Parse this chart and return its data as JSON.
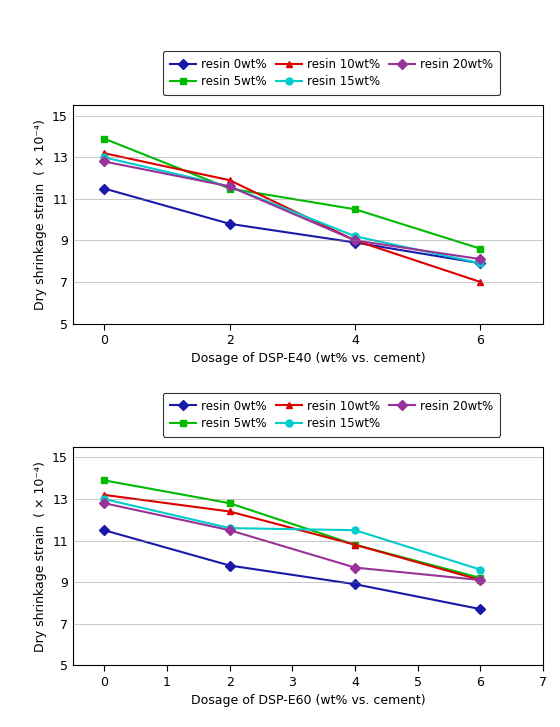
{
  "chart1": {
    "xlabel": "Dosage of DSP-E40 (wt% vs. cement)",
    "ylabel": "Dry shrinkage strain  ( × 10⁻⁴)",
    "xlim": [
      -0.5,
      7
    ],
    "ylim": [
      5,
      15.5
    ],
    "yticks": [
      5,
      7,
      9,
      11,
      13,
      15
    ],
    "xticks": [
      0,
      2,
      4,
      6
    ],
    "series": [
      {
        "label": "resin 0wt%",
        "color": "#1a1aaa",
        "marker": "D",
        "x": [
          0,
          2,
          4,
          6
        ],
        "y": [
          11.5,
          9.8,
          8.9,
          7.9
        ]
      },
      {
        "label": "resin 5wt%",
        "color": "#00bb00",
        "marker": "s",
        "x": [
          0,
          2,
          4,
          6
        ],
        "y": [
          13.9,
          11.5,
          10.5,
          8.6
        ]
      },
      {
        "label": "resin 10wt%",
        "color": "#dd0000",
        "marker": "^",
        "x": [
          0,
          2,
          4,
          6
        ],
        "y": [
          13.2,
          11.9,
          9.0,
          7.0
        ]
      },
      {
        "label": "resin 15wt%",
        "color": "#00cccc",
        "marker": "o",
        "x": [
          0,
          2,
          4,
          6
        ],
        "y": [
          13.0,
          11.6,
          9.2,
          7.9
        ]
      },
      {
        "label": "resin 20wt%",
        "color": "#993399",
        "marker": "D",
        "x": [
          0,
          2,
          4,
          6
        ],
        "y": [
          12.8,
          11.6,
          9.0,
          8.1
        ]
      }
    ]
  },
  "chart2": {
    "xlabel": "Dosage of DSP-E60 (wt% vs. cement)",
    "ylabel": "Dry shrinkage strain  ( × 10⁻⁴)",
    "xlim": [
      -0.5,
      7
    ],
    "ylim": [
      5,
      15.5
    ],
    "yticks": [
      5,
      7,
      9,
      11,
      13,
      15
    ],
    "xticks": [
      0,
      1,
      2,
      3,
      4,
      5,
      6,
      7
    ],
    "series": [
      {
        "label": "resin 0wt%",
        "color": "#1a1aaa",
        "marker": "D",
        "x": [
          0,
          2,
          4,
          6
        ],
        "y": [
          11.5,
          9.8,
          8.9,
          7.7
        ]
      },
      {
        "label": "resin 5wt%",
        "color": "#00bb00",
        "marker": "s",
        "x": [
          0,
          2,
          4,
          6
        ],
        "y": [
          13.9,
          12.8,
          10.8,
          9.2
        ]
      },
      {
        "label": "resin 10wt%",
        "color": "#dd0000",
        "marker": "^",
        "x": [
          0,
          2,
          4,
          6
        ],
        "y": [
          13.2,
          12.4,
          10.8,
          9.1
        ]
      },
      {
        "label": "resin 15wt%",
        "color": "#00cccc",
        "marker": "o",
        "x": [
          0,
          2,
          4,
          6
        ],
        "y": [
          13.0,
          11.6,
          11.5,
          9.6
        ]
      },
      {
        "label": "resin 20wt%",
        "color": "#993399",
        "marker": "D",
        "x": [
          0,
          2,
          4,
          6
        ],
        "y": [
          12.8,
          11.5,
          9.7,
          9.1
        ]
      }
    ]
  }
}
